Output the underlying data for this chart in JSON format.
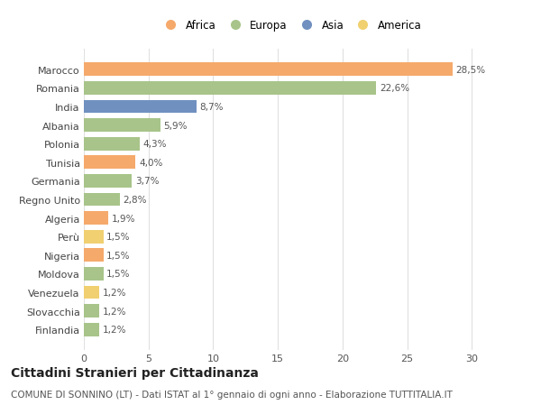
{
  "countries": [
    "Marocco",
    "Romania",
    "India",
    "Albania",
    "Polonia",
    "Tunisia",
    "Germania",
    "Regno Unito",
    "Algeria",
    "Perù",
    "Nigeria",
    "Moldova",
    "Venezuela",
    "Slovacchia",
    "Finlandia"
  ],
  "values": [
    28.5,
    22.6,
    8.7,
    5.9,
    4.3,
    4.0,
    3.7,
    2.8,
    1.9,
    1.5,
    1.5,
    1.5,
    1.2,
    1.2,
    1.2
  ],
  "labels": [
    "28,5%",
    "22,6%",
    "8,7%",
    "5,9%",
    "4,3%",
    "4,0%",
    "3,7%",
    "2,8%",
    "1,9%",
    "1,5%",
    "1,5%",
    "1,5%",
    "1,2%",
    "1,2%",
    "1,2%"
  ],
  "continents": [
    "Africa",
    "Europa",
    "Asia",
    "Europa",
    "Europa",
    "Africa",
    "Europa",
    "Europa",
    "Africa",
    "America",
    "Africa",
    "Europa",
    "America",
    "Europa",
    "Europa"
  ],
  "continent_colors": {
    "Africa": "#F5A96B",
    "Europa": "#A8C48A",
    "Asia": "#7090C0",
    "America": "#F0D070"
  },
  "legend_order": [
    "Africa",
    "Europa",
    "Asia",
    "America"
  ],
  "title": "Cittadini Stranieri per Cittadinanza",
  "subtitle": "COMUNE DI SONNINO (LT) - Dati ISTAT al 1° gennaio di ogni anno - Elaborazione TUTTITALIA.IT",
  "xlim": [
    0,
    32
  ],
  "xticks": [
    0,
    5,
    10,
    15,
    20,
    25,
    30
  ],
  "background_color": "#ffffff",
  "grid_color": "#e0e0e0",
  "bar_height": 0.72,
  "title_fontsize": 10,
  "subtitle_fontsize": 7.5,
  "label_fontsize": 7.5,
  "ytick_fontsize": 8,
  "xtick_fontsize": 8,
  "legend_fontsize": 8.5
}
